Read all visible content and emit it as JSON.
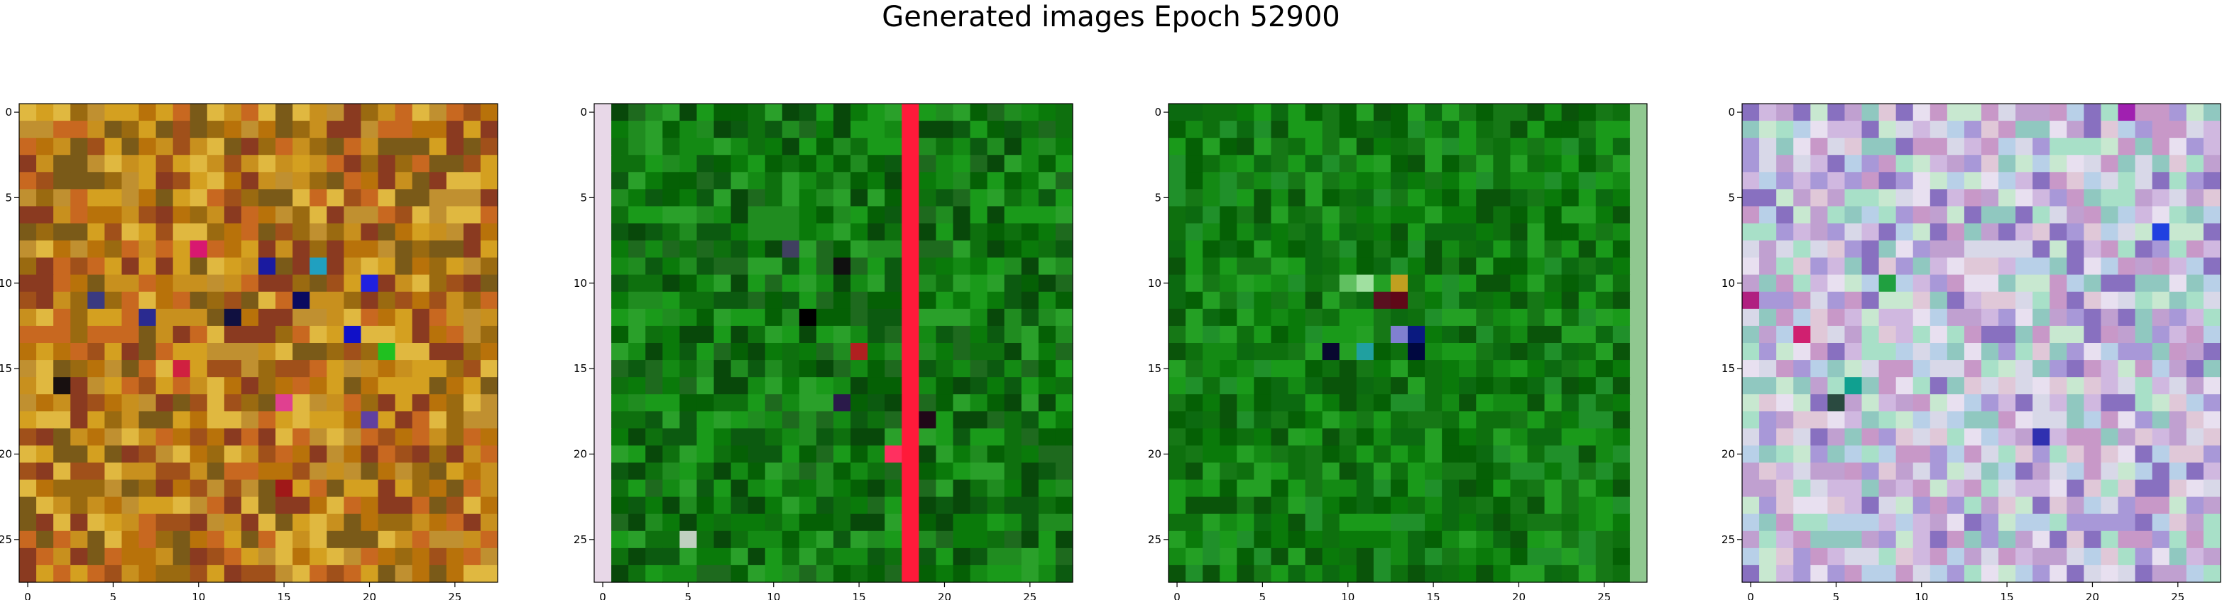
{
  "chart_data": {
    "type": "heatmap",
    "title": "Generated images Epoch 52900",
    "grid": false,
    "panels": [
      {
        "name": "image-1",
        "size": [
          28,
          28
        ],
        "xticks": [
          0,
          5,
          10,
          15,
          20,
          25
        ],
        "yticks": [
          0,
          5,
          10,
          15,
          20,
          25
        ],
        "xlim": [
          -0.5,
          27.5
        ],
        "ylim": [
          27.5,
          -0.5
        ],
        "palette": [
          "#c8901e",
          "#b8720a",
          "#d4a020",
          "#9a6a10",
          "#c86820",
          "#a0501a",
          "#7a5a18",
          "#e0b840",
          "#c09030",
          "#8a3a20"
        ],
        "accents": [
          {
            "row": 9,
            "col": 14,
            "color": "#1a1aa0"
          },
          {
            "row": 10,
            "col": 20,
            "color": "#2020e0"
          },
          {
            "row": 11,
            "col": 16,
            "color": "#0a0a60"
          },
          {
            "row": 12,
            "col": 7,
            "color": "#2a2a90"
          },
          {
            "row": 13,
            "col": 19,
            "color": "#1010c8"
          },
          {
            "row": 12,
            "col": 12,
            "color": "#101040"
          },
          {
            "row": 8,
            "col": 10,
            "color": "#d81870"
          },
          {
            "row": 9,
            "col": 17,
            "color": "#20a0c0"
          },
          {
            "row": 15,
            "col": 9,
            "color": "#d02040"
          },
          {
            "row": 17,
            "col": 15,
            "color": "#e04090"
          },
          {
            "row": 16,
            "col": 2,
            "color": "#181010"
          },
          {
            "row": 11,
            "col": 4,
            "color": "#3a3a80"
          },
          {
            "row": 14,
            "col": 21,
            "color": "#20c020"
          },
          {
            "row": 18,
            "col": 20,
            "color": "#6040a0"
          },
          {
            "row": 22,
            "col": 15,
            "color": "#a01818"
          }
        ]
      },
      {
        "name": "image-2",
        "size": [
          28,
          28
        ],
        "xticks": [
          0,
          5,
          10,
          15,
          20,
          25
        ],
        "yticks": [
          0,
          5,
          10,
          15,
          20,
          25
        ],
        "xlim": [
          -0.5,
          27.5
        ],
        "ylim": [
          27.5,
          -0.5
        ],
        "palette": [
          "#0a7a0a",
          "#148a14",
          "#056005",
          "#1a9a1a",
          "#0c5a10",
          "#208c20",
          "#0e700e",
          "#1e6a1e",
          "#08480a",
          "#2aa02a"
        ],
        "stripe_column": 18,
        "stripe_color": "#ff1a3a",
        "edge_column": 0,
        "edge_color": "#e8d8e8",
        "accents": [
          {
            "row": 9,
            "col": 14,
            "color": "#101010"
          },
          {
            "row": 12,
            "col": 12,
            "color": "#000000"
          },
          {
            "row": 14,
            "col": 15,
            "color": "#b02020"
          },
          {
            "row": 17,
            "col": 14,
            "color": "#2a1a4a"
          },
          {
            "row": 20,
            "col": 17,
            "color": "#ff3060"
          },
          {
            "row": 18,
            "col": 19,
            "color": "#200818"
          },
          {
            "row": 8,
            "col": 11,
            "color": "#404060"
          },
          {
            "row": 25,
            "col": 5,
            "color": "#c0d0c0"
          }
        ]
      },
      {
        "name": "image-3",
        "size": [
          28,
          28
        ],
        "xticks": [
          0,
          5,
          10,
          15,
          20,
          25
        ],
        "yticks": [
          0,
          5,
          10,
          15,
          20,
          25
        ],
        "xlim": [
          -0.5,
          27.5
        ],
        "ylim": [
          27.5,
          -0.5
        ],
        "palette": [
          "#0a7a0a",
          "#148a14",
          "#056005",
          "#1a9a1a",
          "#0c6a10",
          "#20902a",
          "#0e700e",
          "#167816",
          "#0a540a",
          "#24a024"
        ],
        "edge_column": 27,
        "edge_color": "#90c890",
        "accents": [
          {
            "row": 10,
            "col": 10,
            "color": "#60c060"
          },
          {
            "row": 10,
            "col": 11,
            "color": "#a0e0a0"
          },
          {
            "row": 11,
            "col": 12,
            "color": "#5a1020"
          },
          {
            "row": 11,
            "col": 13,
            "color": "#600818"
          },
          {
            "row": 10,
            "col": 13,
            "color": "#c0a020"
          },
          {
            "row": 13,
            "col": 14,
            "color": "#0a1a80"
          },
          {
            "row": 14,
            "col": 14,
            "color": "#000840"
          },
          {
            "row": 14,
            "col": 11,
            "color": "#20a0a0"
          },
          {
            "row": 13,
            "col": 13,
            "color": "#8080d0"
          },
          {
            "row": 14,
            "col": 9,
            "color": "#080830"
          }
        ]
      },
      {
        "name": "image-4",
        "size": [
          28,
          28
        ],
        "xticks": [
          0,
          5,
          10,
          15,
          20,
          25
        ],
        "yticks": [
          0,
          5,
          10,
          15,
          20,
          25
        ],
        "xlim": [
          -0.5,
          27.5
        ],
        "ylim": [
          27.5,
          -0.5
        ],
        "palette": [
          "#d0b8e0",
          "#b8d0e8",
          "#c8e8d0",
          "#e0c8d8",
          "#a898d8",
          "#90c8c0",
          "#e8e0f0",
          "#c0a0d0",
          "#a8e0c8",
          "#d8d8e8",
          "#8870c0",
          "#c898c8"
        ],
        "accents": [
          {
            "row": 11,
            "col": 0,
            "color": "#b02080"
          },
          {
            "row": 13,
            "col": 3,
            "color": "#d02070"
          },
          {
            "row": 19,
            "col": 17,
            "color": "#3030b0"
          },
          {
            "row": 7,
            "col": 24,
            "color": "#2040e0"
          },
          {
            "row": 17,
            "col": 5,
            "color": "#2a4a40"
          },
          {
            "row": 0,
            "col": 22,
            "color": "#a020b0"
          },
          {
            "row": 16,
            "col": 6,
            "color": "#10a090"
          },
          {
            "row": 10,
            "col": 8,
            "color": "#20a040"
          }
        ]
      }
    ]
  }
}
